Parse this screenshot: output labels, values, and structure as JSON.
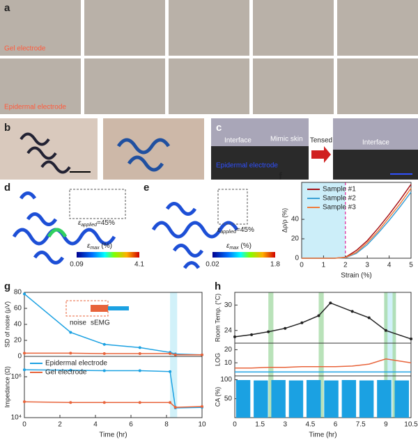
{
  "panels": {
    "a": {
      "label": "a",
      "row1_label": "Gel electrode",
      "row2_label": "Epidermal electrode"
    },
    "b": {
      "label": "b"
    },
    "c": {
      "label": "c",
      "interface": "Interface",
      "mimic_skin": "Mimic skin",
      "epidermal": "Epidermal electrode",
      "tensed": "Tensed",
      "interface2": "Interface"
    },
    "d": {
      "label": "d",
      "eps": "ε",
      "applied": "applied",
      "applied_value": "=45%",
      "max": "max",
      "unit": " (%)",
      "colorbar": [
        0.09,
        4.1
      ]
    },
    "e": {
      "label": "e",
      "eps": "ε",
      "applied": "applied",
      "applied_value": "=45%",
      "max": "max",
      "unit": " (%)",
      "colorbar": [
        0.02,
        1.8
      ]
    }
  },
  "chart_data": [
    {
      "type": "line",
      "label": "f",
      "xlabel": "Strain (%)",
      "ylabel": "Δρ/ρ (%)",
      "x": [
        0,
        0.5,
        1,
        1.5,
        2,
        2.5,
        3,
        3.5,
        4,
        4.5,
        5
      ],
      "xlim": [
        0,
        5
      ],
      "xticks": [
        0,
        1,
        2,
        3,
        4,
        5
      ],
      "ylim": [
        0,
        78
      ],
      "yticks": [
        0,
        20,
        40
      ],
      "legend": "upper left",
      "vline_x": 2,
      "highlight_ranges": [
        {
          "range": [
            0,
            2
          ],
          "color": "#bfeaf7"
        }
      ],
      "series": [
        {
          "name": "Sample #1",
          "color": "#a50f15",
          "values": [
            0,
            0,
            0,
            0,
            1,
            8,
            18,
            31,
            45,
            60,
            76
          ]
        },
        {
          "name": "Sample #2",
          "color": "#3aa0d5",
          "values": [
            0,
            0,
            0,
            0,
            0.5,
            5,
            14,
            26,
            39,
            53,
            68
          ]
        },
        {
          "name": "Sample #3",
          "color": "#f07c3c",
          "values": [
            0,
            0,
            0,
            0,
            0.8,
            6,
            16,
            28,
            42,
            56,
            72
          ]
        }
      ]
    },
    {
      "type": "line",
      "label": "g",
      "ylabel": "SD of noise (μV)",
      "markers": true,
      "x": [
        0,
        2.6,
        4.5,
        6.5,
        8.2,
        8.5,
        10
      ],
      "xlim": [
        0,
        10
      ],
      "ylim": [
        0,
        80
      ],
      "yticks": [
        0,
        20,
        40,
        60,
        80
      ],
      "highlight_ranges": [
        {
          "range": [
            8.2,
            8.6
          ],
          "color": "#c6eef8"
        }
      ],
      "annotations": {
        "noise": "noise",
        "semg": "sEMG"
      },
      "series": [
        {
          "color": "#1ba1e2",
          "values": [
            78,
            30,
            15,
            11,
            5,
            3,
            2
          ]
        },
        {
          "color": "#e8633a",
          "values": [
            4,
            4,
            3.5,
            3.5,
            3.5,
            2,
            2
          ]
        }
      ]
    },
    {
      "type": "line",
      "ylabel": "Impedance (Ω)",
      "xlabel": "Time (hr)",
      "markers": true,
      "log_y": true,
      "x": [
        0,
        2.6,
        4.5,
        6.5,
        8.2,
        8.5,
        10
      ],
      "xlim": [
        0,
        10
      ],
      "xticks": [
        0,
        2,
        4,
        6,
        8,
        10
      ],
      "ylim": [
        10000,
        10000000
      ],
      "yticks": [
        {
          "value": 10000,
          "label": "10⁴"
        },
        {
          "value": 1000000,
          "label": "10⁶"
        }
      ],
      "legend": "upper left",
      "highlight_ranges": [
        {
          "range": [
            8.2,
            8.6
          ],
          "color": "#c6eef8"
        }
      ],
      "series": [
        {
          "name": "Epidermal electrode",
          "color": "#1ba1e2",
          "values": [
            2200000,
            2100000,
            2000000,
            2000000,
            1800000,
            30000,
            32000
          ]
        },
        {
          "name": "Gel electrode",
          "color": "#e8633a",
          "values": [
            60000,
            55000,
            55000,
            55000,
            55000,
            32000,
            35000
          ]
        }
      ]
    },
    {
      "type": "line",
      "label": "h",
      "ylabel": "Room Temp. (°C)",
      "markers": true,
      "x": [
        0,
        1,
        2,
        3,
        4,
        5,
        5.7,
        7,
        8,
        9,
        10.5
      ],
      "xlim": [
        0,
        10.5
      ],
      "ylim": [
        21,
        33
      ],
      "yticks": [
        24,
        30
      ],
      "highlight_ranges": [
        {
          "range": [
            8.9,
            9.6
          ],
          "color": "#c6eef8"
        },
        {
          "range": [
            2,
            2.3
          ],
          "color": "#a8dba8"
        },
        {
          "range": [
            5,
            5.3
          ],
          "color": "#a8dba8"
        },
        {
          "range": [
            8.9,
            9.1
          ],
          "color": "#a8dba8"
        },
        {
          "range": [
            9.4,
            9.6
          ],
          "color": "#a8dba8"
        }
      ],
      "series": [
        {
          "color": "#222222",
          "values": [
            22.5,
            23,
            23.7,
            24.5,
            25.8,
            27.5,
            30.5,
            28.5,
            27,
            24,
            22
          ]
        }
      ]
    },
    {
      "type": "line",
      "ylabel": "LOG",
      "x": [
        0,
        1,
        2,
        3,
        4,
        5,
        6,
        7,
        8,
        9,
        10.5
      ],
      "xlim": [
        0,
        10.5
      ],
      "ylim": [
        0,
        25
      ],
      "yticks": [
        10,
        20
      ],
      "highlight_ranges": [
        {
          "range": [
            8.9,
            9.6
          ],
          "color": "#c6eef8"
        },
        {
          "range": [
            2,
            2.3
          ],
          "color": "#a8dba8"
        },
        {
          "range": [
            5,
            5.3
          ],
          "color": "#a8dba8"
        },
        {
          "range": [
            8.9,
            9.1
          ],
          "color": "#a8dba8"
        },
        {
          "range": [
            9.4,
            9.6
          ],
          "color": "#a8dba8"
        }
      ],
      "series": [
        {
          "color": "#e8633a",
          "values": [
            6,
            6,
            6.5,
            6.5,
            7,
            7,
            7,
            7.5,
            9,
            13,
            10
          ]
        },
        {
          "color": "#1ba1e2",
          "values": [
            3,
            3,
            3,
            3,
            3,
            3,
            3,
            3,
            3,
            3,
            3
          ]
        }
      ]
    },
    {
      "type": "bar",
      "ylabel": "CA (%)",
      "xlabel": "Time (hr)",
      "x": [
        0.5,
        1.55,
        2.6,
        3.65,
        4.7,
        5.75,
        6.8,
        7.85,
        8.9,
        9.95
      ],
      "xlim": [
        0,
        10.5
      ],
      "xticks": [
        0,
        1.5,
        3,
        4.5,
        6,
        7.5,
        9,
        10.5
      ],
      "ylim": [
        0,
        110
      ],
      "yticks": [
        50,
        100
      ],
      "highlight_ranges": [
        {
          "range": [
            8.9,
            9.6
          ],
          "color": "#c6eef8"
        },
        {
          "range": [
            2,
            2.3
          ],
          "color": "#a8dba8"
        },
        {
          "range": [
            5,
            5.3
          ],
          "color": "#a8dba8"
        },
        {
          "range": [
            8.9,
            9.1
          ],
          "color": "#a8dba8"
        },
        {
          "range": [
            9.4,
            9.6
          ],
          "color": "#a8dba8"
        }
      ],
      "series": [
        {
          "color": "#1ba1e2",
          "values": [
            99,
            98,
            99,
            98,
            99,
            98,
            99,
            98,
            99,
            98
          ]
        }
      ]
    }
  ]
}
